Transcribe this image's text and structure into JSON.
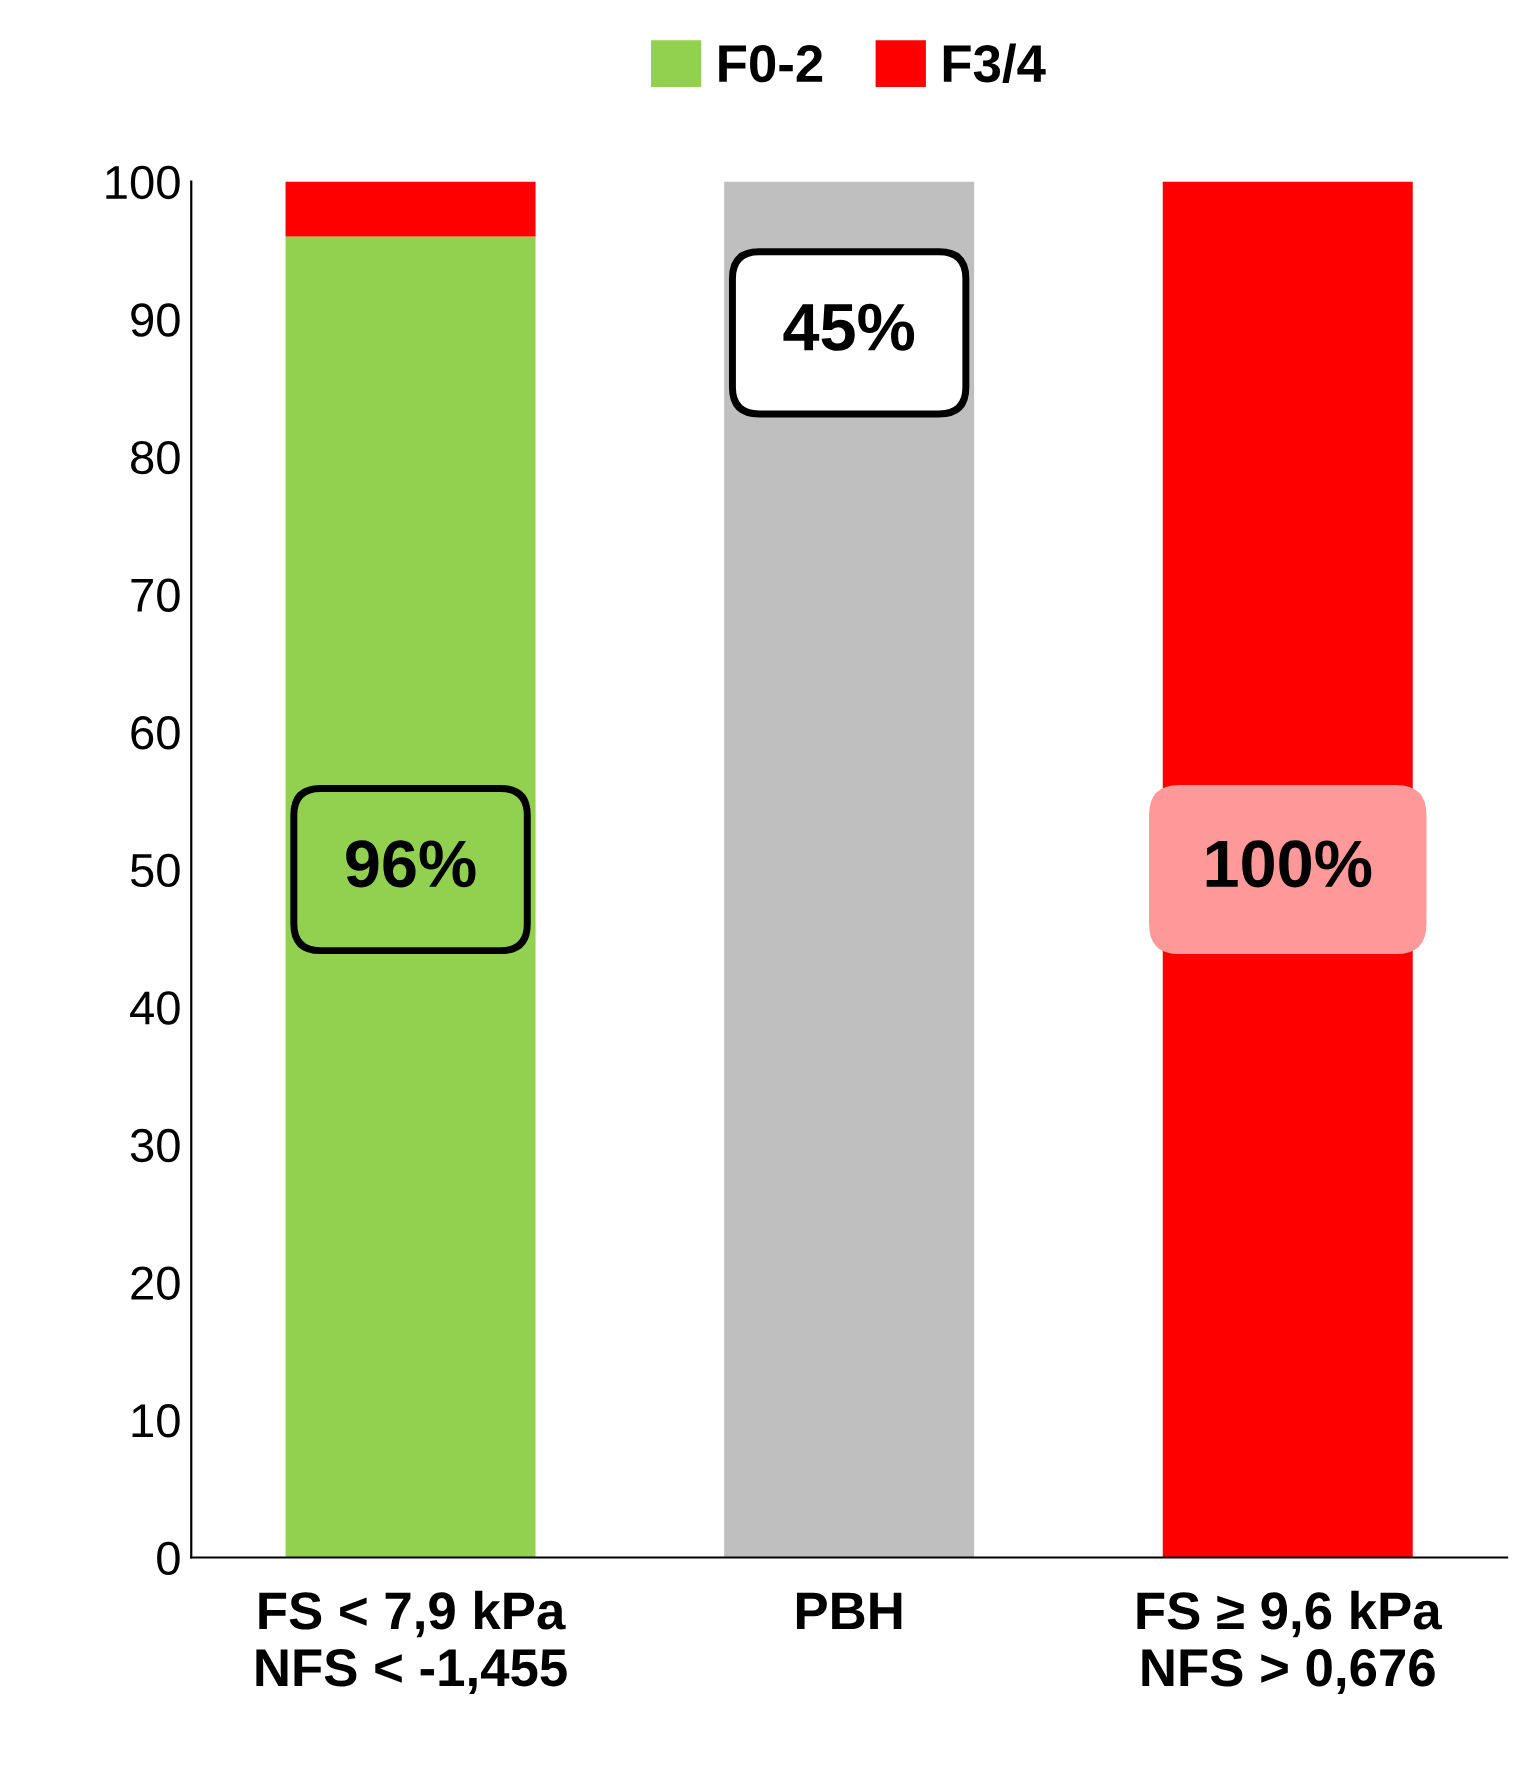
{
  "chart_data": {
    "type": "bar",
    "stacked": true,
    "categories": [
      "FS < 7,9 kPa\nNFS < -1,455",
      "PBH",
      "FS ≥ 9,6 kPa\nNFS > 0,676"
    ],
    "series": [
      {
        "name": "F0-2",
        "color": "#92d050",
        "values": [
          96,
          null,
          null
        ]
      },
      {
        "name": "F3/4",
        "color": "#ff0000",
        "values": [
          4,
          null,
          100
        ]
      },
      {
        "color": "#bfbfbf",
        "values": [
          null,
          100,
          null
        ]
      }
    ],
    "ylim": [
      0,
      100
    ],
    "yticks": [
      0,
      10,
      20,
      30,
      40,
      50,
      60,
      70,
      80,
      90,
      100
    ],
    "grid": false,
    "legend": "top",
    "annotations": [
      "96%",
      "45%",
      "100%"
    ]
  }
}
